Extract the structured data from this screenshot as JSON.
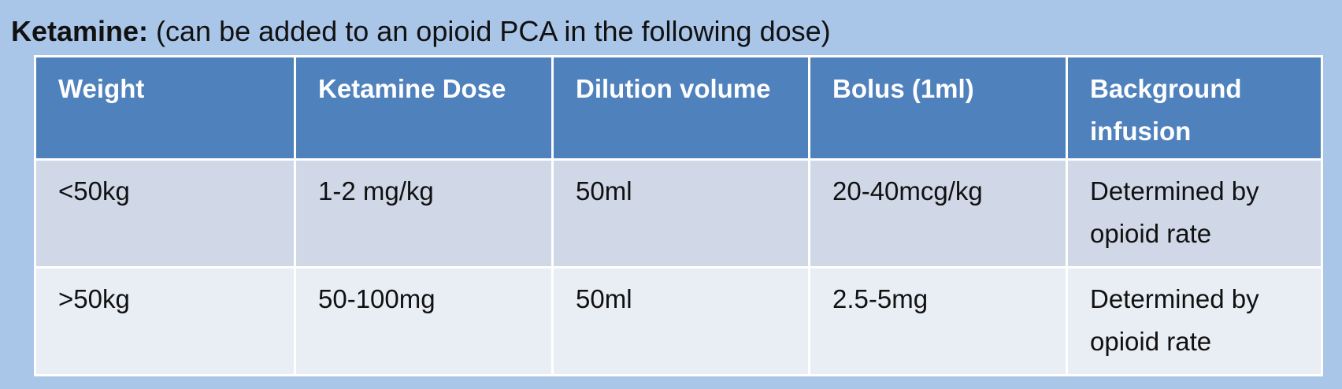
{
  "heading": {
    "bold": "Ketamine:",
    "rest": " (can be added to an opioid PCA in the following dose)"
  },
  "table": {
    "headers": [
      "Weight",
      "Ketamine Dose",
      "Dilution volume",
      "Bolus (1ml)",
      "Background infusion"
    ],
    "rows": [
      [
        "<50kg",
        "1-2 mg/kg",
        "50ml",
        "20-40mcg/kg",
        "Determined by opioid rate"
      ],
      [
        ">50kg",
        "50-100mg",
        "50ml",
        "2.5-5mg",
        "Determined by opioid rate"
      ]
    ]
  },
  "colors": {
    "background": "#a9c5e8",
    "header": "#4f81bd",
    "row_odd": "#d0d8e8",
    "row_even": "#e9edf4"
  }
}
